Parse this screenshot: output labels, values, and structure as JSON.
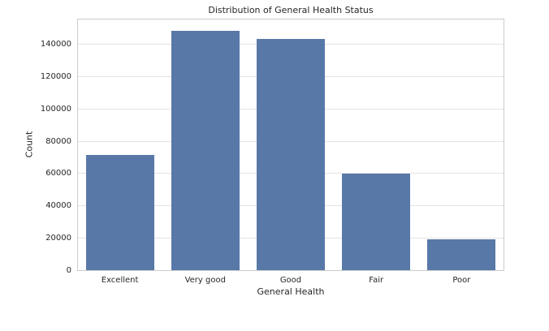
{
  "chart_data": {
    "type": "bar",
    "title": "Distribution of General Health Status",
    "xlabel": "General Health",
    "ylabel": "Count",
    "categories": [
      "Excellent",
      "Very good",
      "Good",
      "Fair",
      "Poor"
    ],
    "values": [
      71500,
      148500,
      143500,
      59900,
      19000
    ],
    "yticks": [
      0,
      20000,
      40000,
      60000,
      80000,
      100000,
      120000,
      140000
    ],
    "ylim": [
      0,
      155500
    ],
    "bar_width_fraction": 0.8,
    "grid": "horizontal",
    "legend": "none",
    "colors": {
      "bar": "#5878a8",
      "grid": "#e3e3e3",
      "spine": "#cbcbcb",
      "text": "#262626",
      "background": "#ffffff"
    }
  }
}
